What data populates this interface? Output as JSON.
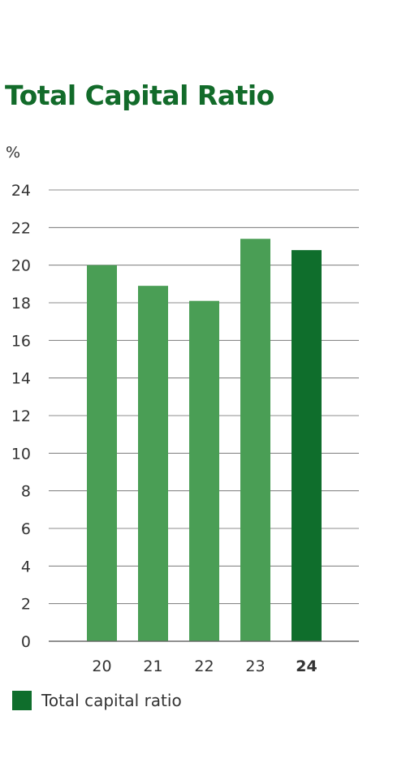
{
  "colors": {
    "title": "#126b2a",
    "bar": "#4a9e55",
    "bar_highlight": "#0f6e2c",
    "grid": "#666666",
    "text": "#333333"
  },
  "chart_data": {
    "type": "bar",
    "title": "Total Capital Ratio",
    "ylabel": "%",
    "xlabel": "",
    "categories": [
      "20",
      "21",
      "22",
      "23",
      "24"
    ],
    "highlight_category": "24",
    "series": [
      {
        "name": "Total capital ratio",
        "values": [
          20.0,
          18.9,
          18.1,
          21.4,
          20.8
        ]
      }
    ],
    "ylim": [
      0,
      24
    ],
    "yticks": [
      0,
      2,
      4,
      6,
      8,
      10,
      12,
      14,
      16,
      18,
      20,
      22,
      24
    ],
    "grid": true,
    "legend": "bottom-left"
  }
}
